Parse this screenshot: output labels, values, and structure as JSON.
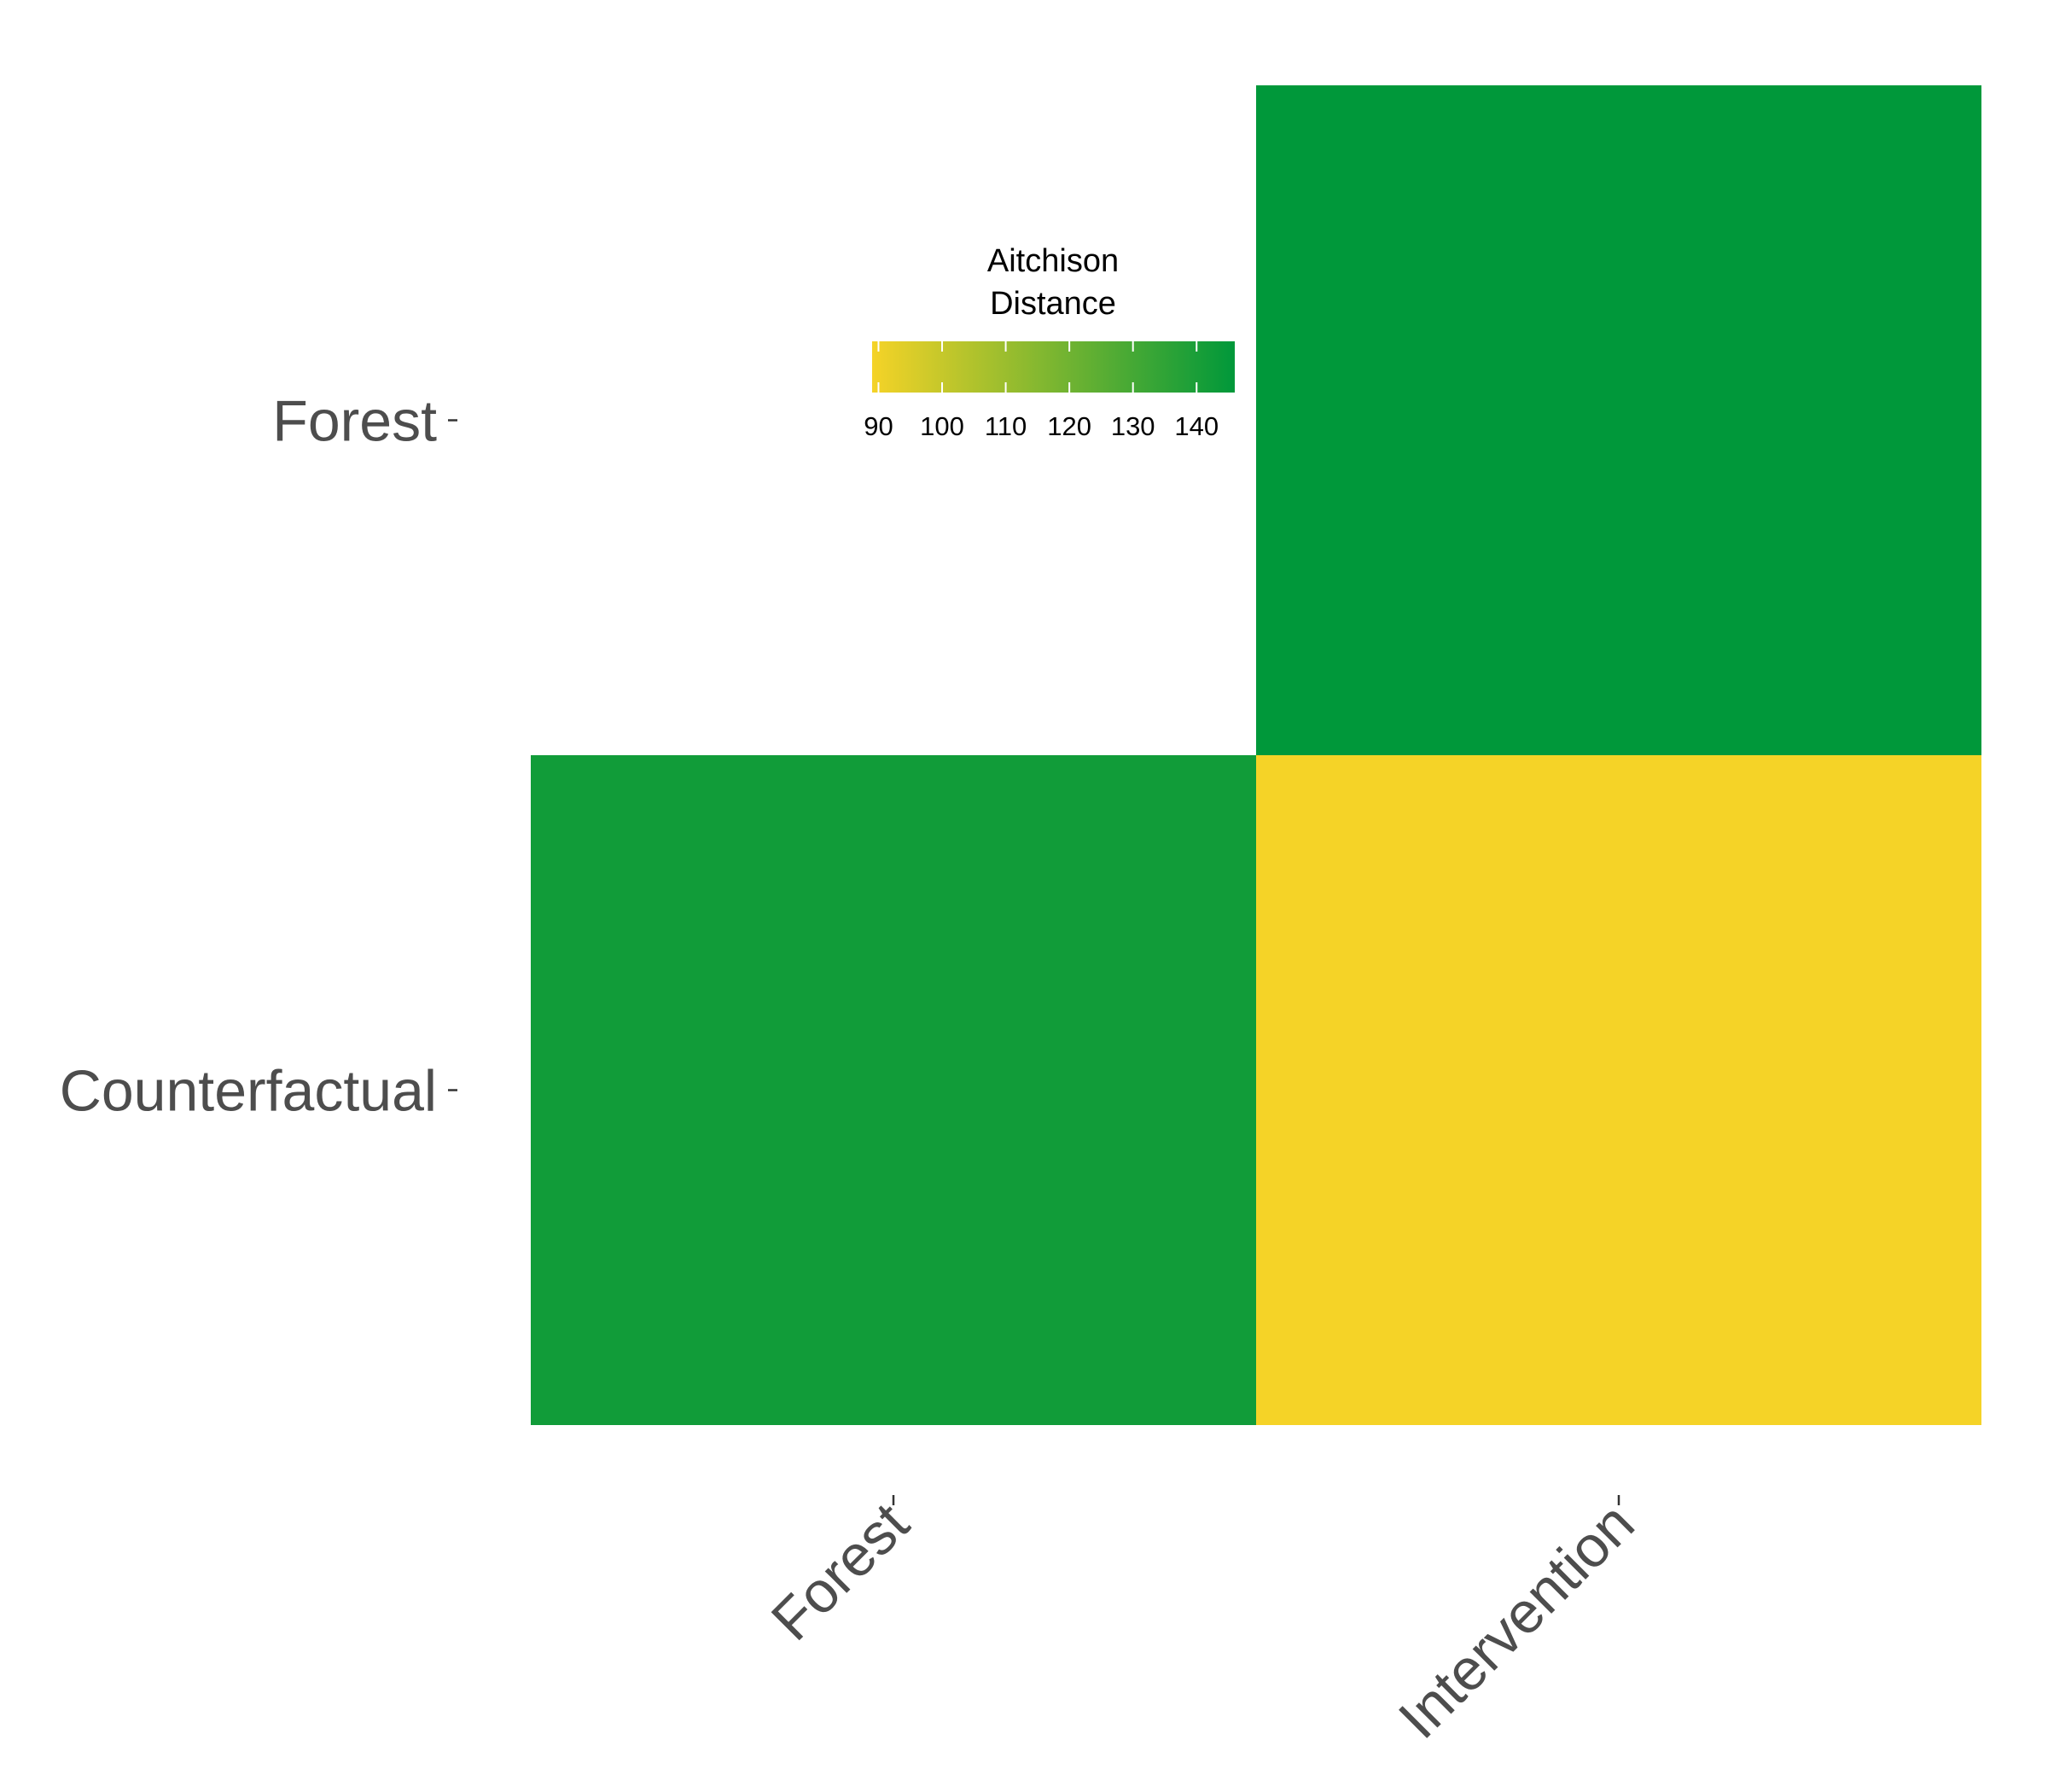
{
  "chart_data": {
    "type": "heatmap",
    "x_categories": [
      "Forest",
      "Intervention"
    ],
    "y_categories": [
      "Forest",
      "Counterfactual"
    ],
    "cells": [
      {
        "x": "Intervention",
        "y": "Forest",
        "value": 146
      },
      {
        "x": "Forest",
        "y": "Counterfactual",
        "value": 142
      },
      {
        "x": "Intervention",
        "y": "Counterfactual",
        "value": 89
      }
    ],
    "missing_cells": [
      {
        "x": "Forest",
        "y": "Forest"
      }
    ],
    "legend": {
      "title_lines": [
        "Aitchison",
        "Distance"
      ],
      "ticks": [
        90,
        100,
        110,
        120,
        130,
        140
      ],
      "range": [
        89,
        146
      ],
      "colors": {
        "low": "#f5d327",
        "high": "#00983a"
      },
      "placement": "top-center"
    },
    "grid": false,
    "title": "",
    "xlabel": "",
    "ylabel": ""
  }
}
